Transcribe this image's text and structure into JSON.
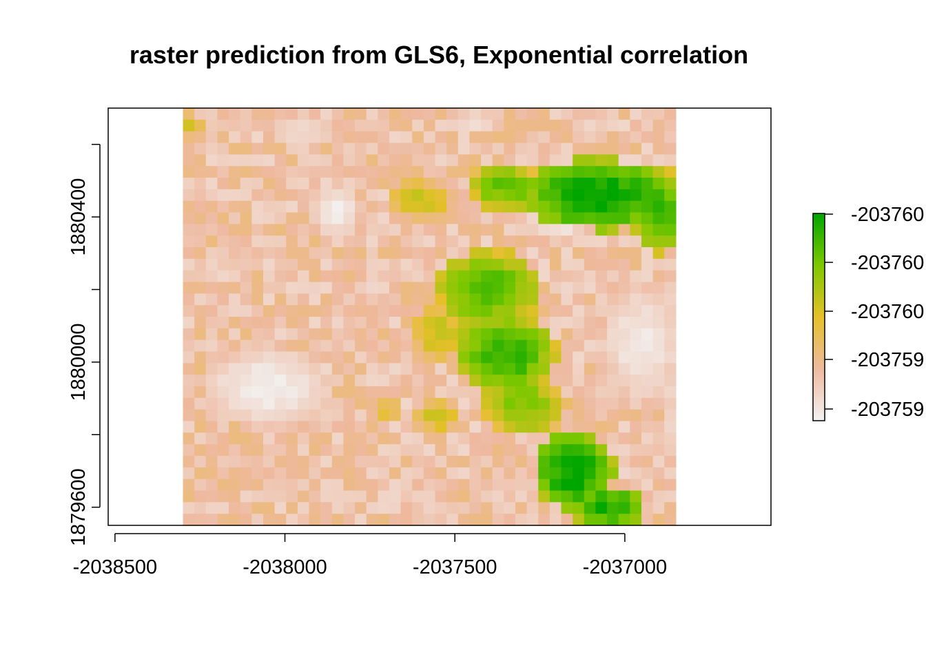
{
  "chart_data": {
    "type": "heatmap",
    "title": "raster prediction from GLS6, Exponential correlation",
    "xlabel": "",
    "ylabel": "",
    "x_ticks": [
      "-2038500",
      "-2038000",
      "-2037500",
      "-2037000"
    ],
    "y_ticks": [
      "1879600",
      "1880000",
      "1880400"
    ],
    "xlim": [
      -2038520,
      -2036570
    ],
    "ylim": [
      1879550,
      1880700
    ],
    "raster_extent": {
      "x": [
        -2038300,
        -2036850
      ],
      "y": [
        1879550,
        1880700
      ]
    },
    "grid": {
      "cols": 43,
      "rows": 36
    },
    "legend": {
      "placement": "right",
      "labels": [
        "-203759",
        "-203759",
        "-203760",
        "-203760",
        "-203760"
      ],
      "colors": [
        "#f2f2f2",
        "#eeb99f",
        "#e6c02a",
        "#7ec800",
        "#00a600"
      ]
    },
    "colors": {
      "low": "#f2f2f2",
      "high": "#00a600"
    },
    "note_values": "cell values given as relative level 0 (lowest, pale) to 1 (highest, green), read from the color scale",
    "green_regions": [
      {
        "cx": -2037080,
        "cy": 1880460,
        "rx": 220,
        "ry": 100,
        "level": 1.0
      },
      {
        "cx": -2036900,
        "cy": 1880420,
        "rx": 80,
        "ry": 120,
        "level": 0.9
      },
      {
        "cx": -2037350,
        "cy": 1880480,
        "rx": 120,
        "ry": 70,
        "level": 0.8
      },
      {
        "cx": -2037600,
        "cy": 1880450,
        "rx": 110,
        "ry": 60,
        "level": 0.6
      },
      {
        "cx": -2037400,
        "cy": 1880200,
        "rx": 160,
        "ry": 110,
        "level": 0.85
      },
      {
        "cx": -2037350,
        "cy": 1880020,
        "rx": 150,
        "ry": 120,
        "level": 0.9
      },
      {
        "cx": -2037550,
        "cy": 1880080,
        "rx": 90,
        "ry": 90,
        "level": 0.6
      },
      {
        "cx": -2037300,
        "cy": 1879880,
        "rx": 130,
        "ry": 90,
        "level": 0.75
      },
      {
        "cx": -2037550,
        "cy": 1879850,
        "rx": 80,
        "ry": 60,
        "level": 0.55
      },
      {
        "cx": -2037150,
        "cy": 1879700,
        "rx": 120,
        "ry": 110,
        "level": 1.0
      },
      {
        "cx": -2037050,
        "cy": 1879600,
        "rx": 110,
        "ry": 60,
        "level": 0.95
      },
      {
        "cx": -2037700,
        "cy": 1879870,
        "rx": 60,
        "ry": 40,
        "level": 0.5
      },
      {
        "cx": -2038280,
        "cy": 1880650,
        "rx": 50,
        "ry": 40,
        "level": 0.55
      }
    ],
    "pale_regions": [
      {
        "cx": -2038050,
        "cy": 1879930,
        "rx": 200,
        "ry": 120,
        "level": 0.0
      },
      {
        "cx": -2037850,
        "cy": 1880420,
        "rx": 80,
        "ry": 80,
        "level": 0.0
      },
      {
        "cx": -2036950,
        "cy": 1880050,
        "rx": 130,
        "ry": 180,
        "level": 0.02
      },
      {
        "cx": -2037200,
        "cy": 1880360,
        "rx": 110,
        "ry": 30,
        "level": 0.05
      },
      {
        "cx": -2037950,
        "cy": 1880640,
        "rx": 120,
        "ry": 60,
        "level": 0.08
      },
      {
        "cx": -2037450,
        "cy": 1880660,
        "rx": 90,
        "ry": 40,
        "level": 0.05
      }
    ]
  }
}
